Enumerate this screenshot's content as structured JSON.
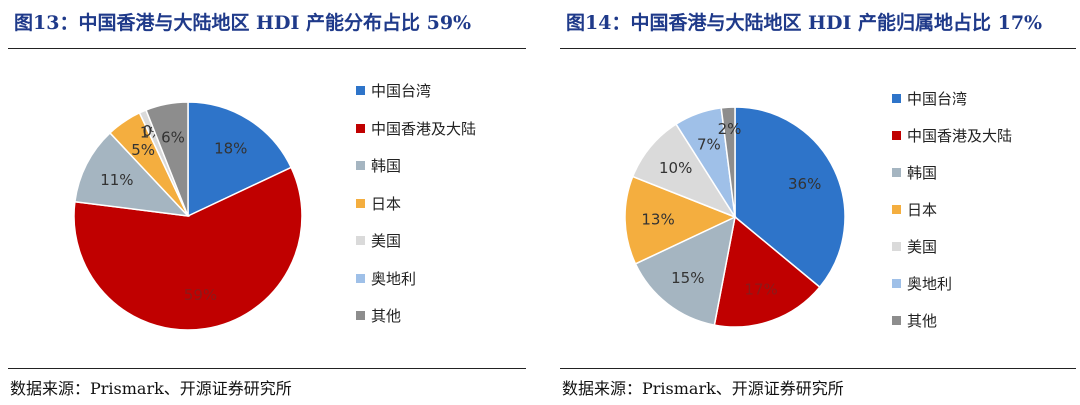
{
  "source_text": "数据来源：Prismark、开源证券研究所",
  "chart_data": [
    {
      "type": "pie",
      "title": "图13：中国香港与大陆地区 HDI 产能分布占比 59%",
      "categories": [
        "中国台湾",
        "中国香港及大陆",
        "韩国",
        "日本",
        "美国",
        "奥地利",
        "其他"
      ],
      "values": [
        18,
        59,
        11,
        5,
        1,
        0,
        6
      ],
      "labels": [
        "18%",
        "59%",
        "11%",
        "5%",
        "1%",
        "0%",
        "6%"
      ],
      "colors": [
        "#2e74c9",
        "#c00000",
        "#a5b5c1",
        "#f4ae3f",
        "#dadada",
        "#9fc0e8",
        "#8d8d8d"
      ],
      "legend_position": "right",
      "source": "数据来源：Prismark、开源证券研究所"
    },
    {
      "type": "pie",
      "title": "图14：中国香港与大陆地区 HDI 产能归属地占比 17%",
      "categories": [
        "中国台湾",
        "中国香港及大陆",
        "韩国",
        "日本",
        "美国",
        "奥地利",
        "其他"
      ],
      "values": [
        36,
        17,
        15,
        13,
        10,
        7,
        2
      ],
      "labels": [
        "36%",
        "17%",
        "15%",
        "13%",
        "10%",
        "7%",
        "2%"
      ],
      "colors": [
        "#2e74c9",
        "#c00000",
        "#a5b5c1",
        "#f4ae3f",
        "#dadada",
        "#9fc0e8",
        "#8d8d8d"
      ],
      "legend_position": "right",
      "source": "数据来源：Prismark、开源证券研究所"
    }
  ]
}
